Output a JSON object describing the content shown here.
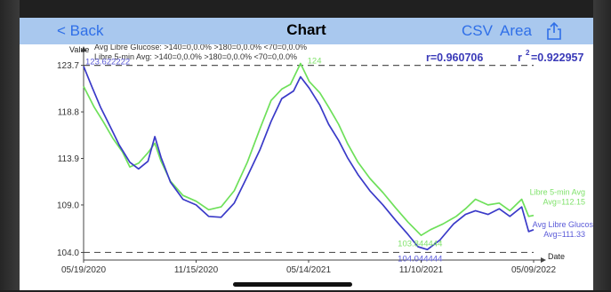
{
  "nav": {
    "back_label": "< Back",
    "title": "Chart",
    "csv_label": "CSV",
    "area_label": "Area",
    "share_icon": "share-icon"
  },
  "stats": {
    "r_label": "r=0.960706",
    "r2_label": "r",
    "r2_exp": "2",
    "r2_value": "=0.922957"
  },
  "colors": {
    "green": "#6ee05a",
    "blue": "#3a3ac8",
    "text_blue": "#3a3ab8",
    "label_green": "#7fe26a",
    "label_blue": "#5a5ad8"
  },
  "chart_data": {
    "type": "line",
    "xlabel": "Date",
    "ylabel": "Value",
    "x_ticks": [
      "05/19/2020",
      "11/15/2020",
      "05/14/2021",
      "11/10/2021",
      "05/09/2022"
    ],
    "y_ticks": [
      "104.0",
      "109.0",
      "113.9",
      "118.8",
      "123.7"
    ],
    "y_tick_values": [
      104.0,
      109.0,
      113.9,
      118.8,
      123.7
    ],
    "ylim": [
      103.2,
      124.6
    ],
    "xlim": [
      "2020-05-19",
      "2022-05-09"
    ],
    "legend_lines": [
      "Avg Libre Glucose: >140=0,0.0%  >180=0,0.0%  <70=0,0.0%",
      "Libre 5-min Avg: >140=0,0.0%  >180=0,0.0%  <70=0,0.0%"
    ],
    "max_label": "123.622222",
    "max_green_label": "124",
    "min_label": "104.044444",
    "min_green_label": "103.844444",
    "ref_lines": [
      123.7,
      104.0
    ],
    "grid": false,
    "series": [
      {
        "name": "Libre 5-min Avg",
        "color": "#6ee05a",
        "end_label_1": "Libre 5-min Avg",
        "end_label_2": "Avg=112.15",
        "points": [
          [
            "2020-05-19",
            121.5
          ],
          [
            "2020-06-05",
            119.3
          ],
          [
            "2020-06-20",
            117.7
          ],
          [
            "2020-07-05",
            116.0
          ],
          [
            "2020-07-20",
            114.6
          ],
          [
            "2020-08-01",
            113.0
          ],
          [
            "2020-08-15",
            113.4
          ],
          [
            "2020-08-30",
            114.5
          ],
          [
            "2020-09-10",
            115.5
          ],
          [
            "2020-09-20",
            113.6
          ],
          [
            "2020-10-05",
            111.5
          ],
          [
            "2020-10-25",
            110.0
          ],
          [
            "2020-11-15",
            109.4
          ],
          [
            "2020-12-05",
            108.5
          ],
          [
            "2020-12-25",
            108.8
          ],
          [
            "2021-01-15",
            110.5
          ],
          [
            "2021-02-05",
            113.5
          ],
          [
            "2021-02-25",
            117.0
          ],
          [
            "2021-03-15",
            120.0
          ],
          [
            "2021-04-01",
            121.2
          ],
          [
            "2021-04-15",
            121.7
          ],
          [
            "2021-05-01",
            123.9
          ],
          [
            "2021-05-15",
            122.0
          ],
          [
            "2021-06-01",
            120.8
          ],
          [
            "2021-06-15",
            119.3
          ],
          [
            "2021-07-01",
            117.5
          ],
          [
            "2021-07-15",
            115.5
          ],
          [
            "2021-08-01",
            113.5
          ],
          [
            "2021-08-20",
            111.8
          ],
          [
            "2021-09-10",
            110.3
          ],
          [
            "2021-09-30",
            108.7
          ],
          [
            "2021-10-20",
            107.2
          ],
          [
            "2021-11-10",
            105.8
          ],
          [
            "2021-11-25",
            106.4
          ],
          [
            "2021-12-15",
            107.0
          ],
          [
            "2022-01-05",
            107.8
          ],
          [
            "2022-01-20",
            108.6
          ],
          [
            "2022-02-05",
            109.6
          ],
          [
            "2022-02-25",
            109.0
          ],
          [
            "2022-03-15",
            109.2
          ],
          [
            "2022-04-01",
            108.4
          ],
          [
            "2022-04-20",
            109.6
          ],
          [
            "2022-05-01",
            107.8
          ],
          [
            "2022-05-09",
            107.9
          ]
        ]
      },
      {
        "name": "Avg Libre Glucos",
        "color": "#3a3ac8",
        "end_label_1": "Avg Libre Glucos",
        "end_label_2": "Avg=111.33",
        "points": [
          [
            "2020-05-19",
            123.6
          ],
          [
            "2020-06-01",
            121.5
          ],
          [
            "2020-06-15",
            119.3
          ],
          [
            "2020-07-01",
            117.2
          ],
          [
            "2020-07-15",
            115.3
          ],
          [
            "2020-08-01",
            113.5
          ],
          [
            "2020-08-15",
            112.8
          ],
          [
            "2020-08-30",
            113.6
          ],
          [
            "2020-09-10",
            116.2
          ],
          [
            "2020-09-20",
            114.0
          ],
          [
            "2020-10-05",
            111.4
          ],
          [
            "2020-10-25",
            109.6
          ],
          [
            "2020-11-15",
            109.0
          ],
          [
            "2020-12-05",
            107.8
          ],
          [
            "2020-12-25",
            107.7
          ],
          [
            "2021-01-15",
            109.2
          ],
          [
            "2021-02-05",
            112.0
          ],
          [
            "2021-02-25",
            114.8
          ],
          [
            "2021-03-15",
            117.8
          ],
          [
            "2021-04-01",
            120.2
          ],
          [
            "2021-04-20",
            121.0
          ],
          [
            "2021-05-01",
            122.5
          ],
          [
            "2021-05-15",
            121.3
          ],
          [
            "2021-06-01",
            119.5
          ],
          [
            "2021-06-15",
            117.5
          ],
          [
            "2021-07-01",
            115.8
          ],
          [
            "2021-07-15",
            114.0
          ],
          [
            "2021-08-01",
            112.2
          ],
          [
            "2021-08-20",
            110.5
          ],
          [
            "2021-09-10",
            109.0
          ],
          [
            "2021-09-30",
            107.4
          ],
          [
            "2021-10-20",
            105.9
          ],
          [
            "2021-11-05",
            104.6
          ],
          [
            "2021-11-20",
            104.3
          ],
          [
            "2021-12-10",
            105.3
          ],
          [
            "2022-01-01",
            107.0
          ],
          [
            "2022-01-20",
            108.0
          ],
          [
            "2022-02-05",
            108.4
          ],
          [
            "2022-02-25",
            108.0
          ],
          [
            "2022-03-15",
            108.6
          ],
          [
            "2022-04-01",
            107.8
          ],
          [
            "2022-04-20",
            108.8
          ],
          [
            "2022-05-01",
            106.2
          ],
          [
            "2022-05-09",
            106.4
          ]
        ]
      }
    ]
  }
}
